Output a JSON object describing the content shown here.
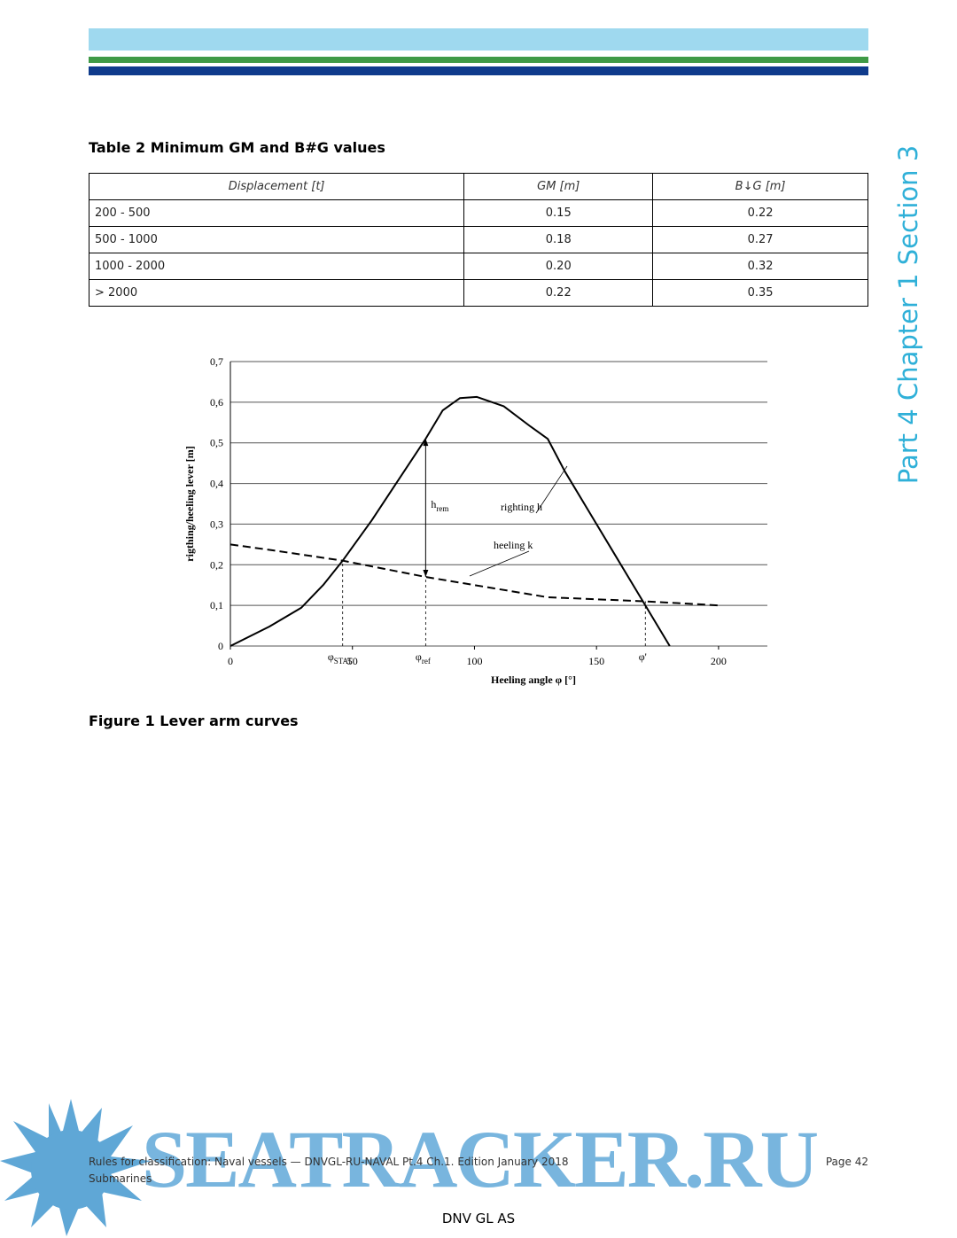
{
  "side_label": "Part 4 Chapter 1 Section 3",
  "table": {
    "title": "Table 2 Minimum GM and B#G values",
    "header": [
      "Displacement [t]",
      "GM [m]",
      "B↓G [m]"
    ],
    "rows": [
      [
        "200 - 500",
        "0.15",
        "0.22"
      ],
      [
        "500 - 1000",
        "0.18",
        "0.27"
      ],
      [
        "1000 - 2000",
        "0.20",
        "0.32"
      ],
      [
        "> 2000",
        "0.22",
        "0.35"
      ]
    ]
  },
  "figure": {
    "caption": "Figure 1 Lever arm curves",
    "chart_data": {
      "type": "line",
      "x_label": "Heeling angle φ [°]",
      "y_label": "rigthing/heeling lever [m]",
      "xlim": [
        0,
        220
      ],
      "ylim": [
        0,
        0.7
      ],
      "xticks": [
        0,
        50,
        100,
        150,
        200
      ],
      "yticks": [
        0,
        {
          "value": 0.1,
          "label": "0,1"
        },
        {
          "value": 0.2,
          "label": "0,2"
        },
        {
          "value": 0.3,
          "label": "0,3"
        },
        {
          "value": 0.4,
          "label": "0,4"
        },
        {
          "value": 0.5,
          "label": "0,5"
        },
        {
          "value": 0.6,
          "label": "0,6"
        },
        {
          "value": 0.7,
          "label": "0,7"
        }
      ],
      "grid": true,
      "series": [
        {
          "name": "righting h",
          "color": "#000000",
          "dash": false,
          "x": [
            0,
            16,
            29,
            38,
            46,
            58,
            69,
            80,
            87,
            94,
            101,
            112,
            123,
            130,
            137,
            148,
            159,
            170,
            180
          ],
          "values": [
            0,
            0.048,
            0.094,
            0.15,
            0.21,
            0.31,
            0.41,
            0.51,
            0.58,
            0.61,
            0.613,
            0.59,
            0.54,
            0.51,
            0.43,
            0.32,
            0.21,
            0.1,
            0
          ]
        },
        {
          "name": "heeling k",
          "color": "#000000",
          "dash": true,
          "x": [
            0,
            18,
            46,
            80,
            105,
            130,
            170,
            200
          ],
          "values": [
            0.25,
            0.235,
            0.21,
            0.17,
            0.145,
            0.12,
            0.11,
            0.1
          ]
        }
      ],
      "markers": [
        {
          "label": "φ",
          "sub": "STAT",
          "x": 46,
          "y": 0.21
        },
        {
          "label": "φ",
          "sub": "ref",
          "x": 80,
          "y": 0.17
        },
        {
          "label": "φ'",
          "x": 170,
          "y": 0.11
        }
      ],
      "arrow": {
        "label": "h",
        "sub": "rem",
        "x": 80,
        "y1": 0.17,
        "y2": 0.51
      }
    }
  },
  "footer": {
    "line1": "Rules for classification: Naval vessels — DNVGL-RU-NAVAL Pt.4 Ch.1. Edition January 2018",
    "line2": "Submarines",
    "page": "Page 42",
    "company": "DNV GL AS"
  },
  "watermark": "SEATRACKER.RU"
}
